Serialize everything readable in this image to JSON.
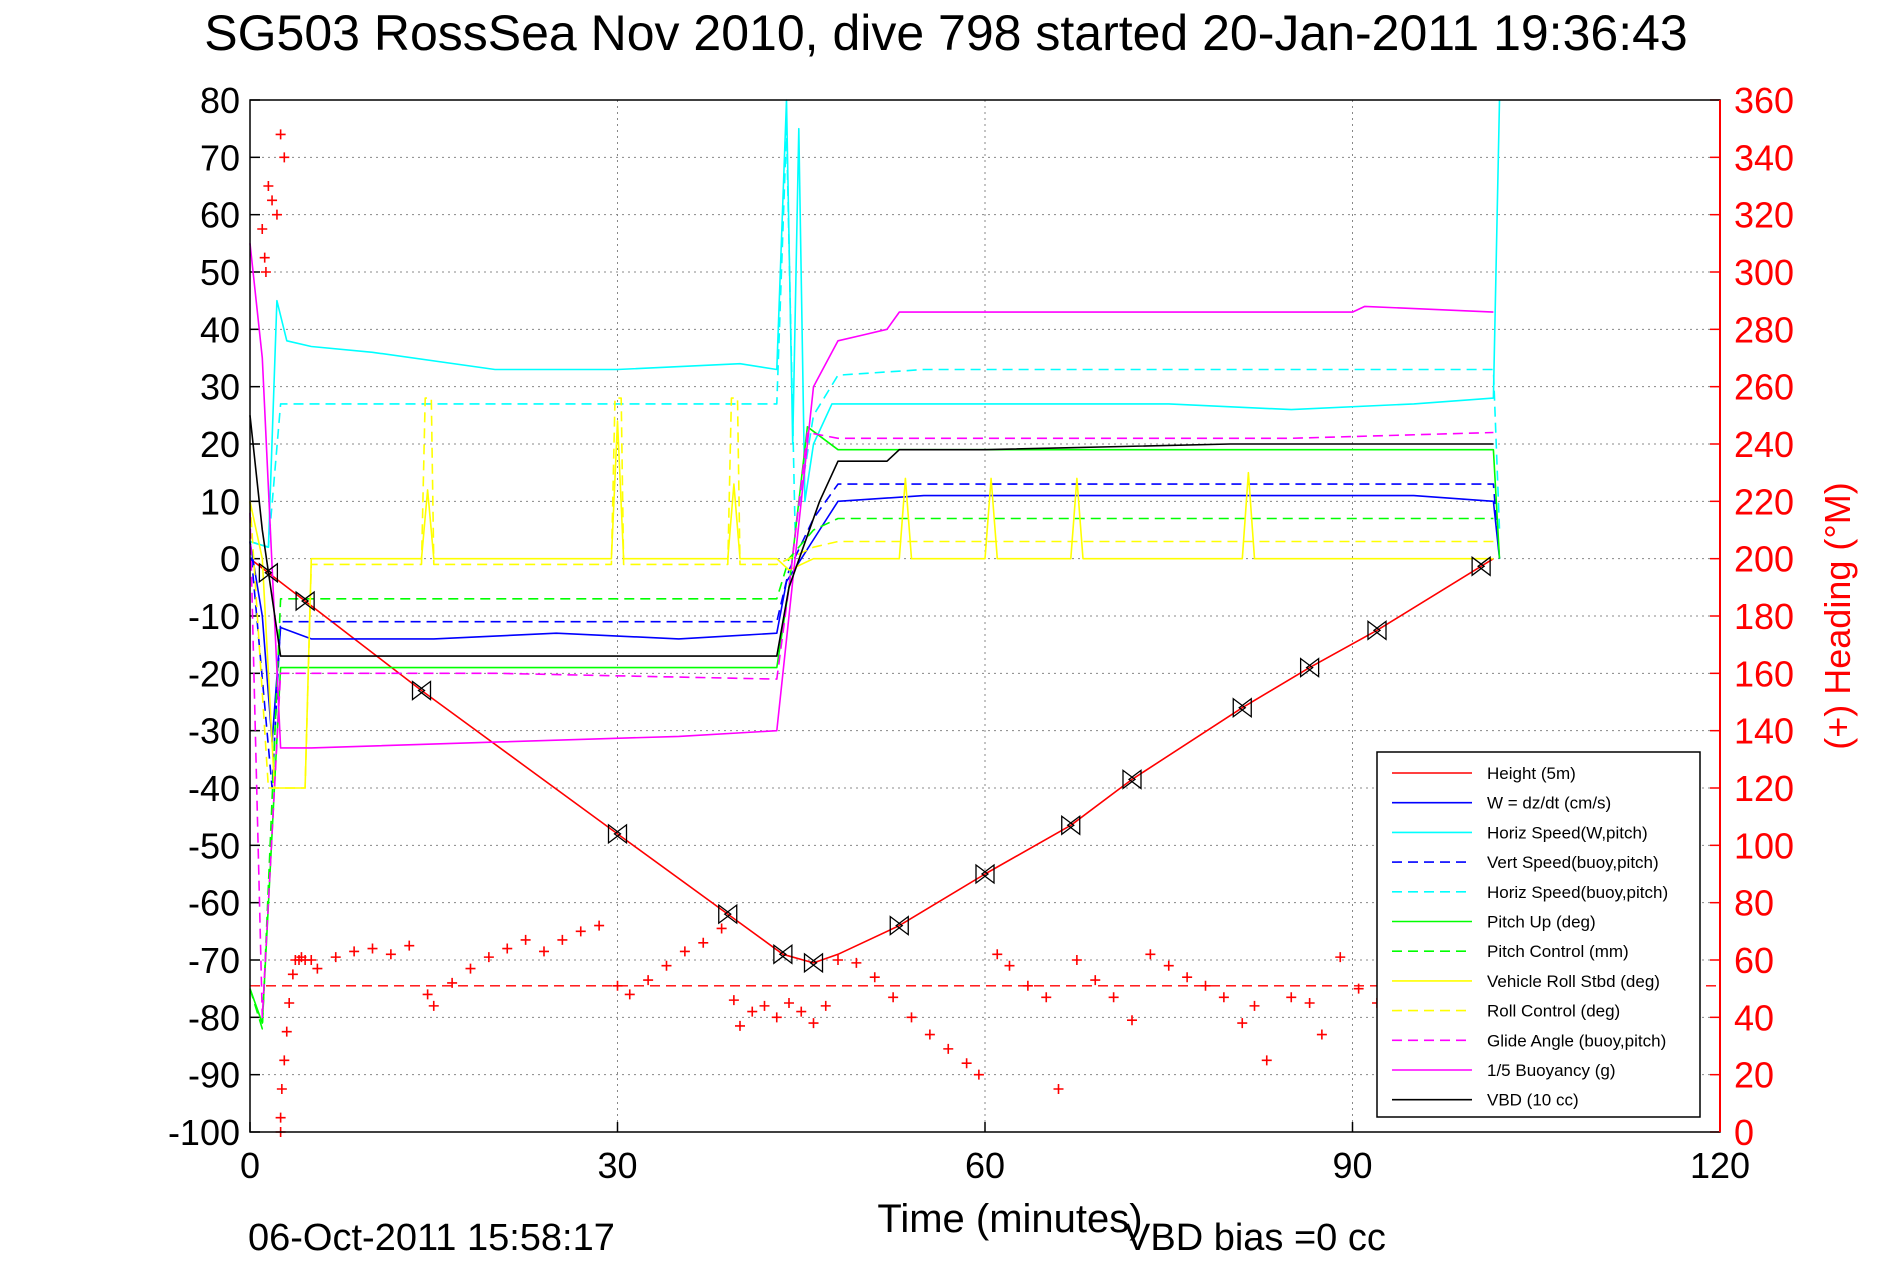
{
  "chart_data": {
    "type": "line",
    "title": "SG503 RossSea Nov 2010, dive 798 started 20-Jan-2011 19:36:43",
    "xlabel": "Time (minutes)",
    "ylabel_right": "(+) Heading (°M)",
    "xlim": [
      0,
      120
    ],
    "ylim": [
      -100,
      80
    ],
    "ylim_right": [
      0,
      360
    ],
    "x_ticks": [
      0,
      30,
      60,
      90,
      120
    ],
    "y_ticks": [
      80,
      70,
      60,
      50,
      40,
      30,
      20,
      10,
      0,
      -10,
      -20,
      -30,
      -40,
      -50,
      -60,
      -70,
      -80,
      -90,
      -100
    ],
    "y_ticks_right": [
      360,
      340,
      320,
      300,
      280,
      260,
      240,
      220,
      200,
      180,
      160,
      140,
      120,
      100,
      80,
      60,
      40,
      20,
      0
    ],
    "grid": true,
    "legend_position": "bottom-right",
    "footer_left": "06-Oct-2011 15:58:17",
    "footer_right": "VBD bias =0 cc",
    "colors": {
      "red": "#ff0000",
      "blue": "#0000ff",
      "cyan": "#00ffff",
      "green": "#00ff00",
      "yellow": "#ffff00",
      "magenta": "#ff00ff",
      "black": "#000000"
    },
    "series": [
      {
        "name": "Height (5m)",
        "color": "#ff0000",
        "dash": false,
        "x": [
          0,
          14,
          30,
          39,
          43.5,
          46,
          48,
          53,
          60,
          67,
          72,
          81,
          86.5,
          92,
          100,
          101.5
        ],
        "y": [
          0,
          -23,
          -48,
          -62,
          -69,
          -70.5,
          -69,
          -64,
          -55,
          -46.5,
          -38.5,
          -26,
          -19,
          -12.5,
          -2,
          0
        ]
      },
      {
        "name": "W = dz/dt (cm/s)",
        "color": "#0000ff",
        "dash": false,
        "x": [
          0,
          1,
          1.8,
          2.5,
          5,
          15,
          25,
          35,
          43,
          43.8,
          45,
          46.5,
          48,
          55,
          65,
          75,
          85,
          95,
          101.5,
          102
        ],
        "y": [
          3,
          -10,
          -32,
          -12,
          -14,
          -14,
          -13,
          -14,
          -13,
          -4,
          0,
          5,
          10,
          11,
          11,
          11,
          11,
          11,
          10,
          0
        ]
      },
      {
        "name": "Horiz Speed(W,pitch)",
        "color": "#00ffff",
        "dash": false,
        "x": [
          0,
          1.5,
          2.2,
          3,
          5,
          10,
          20,
          30,
          40,
          43,
          43.8,
          44.3,
          44.8,
          45.3,
          46,
          47.5,
          55,
          65,
          75,
          85,
          95,
          101.5,
          102
        ],
        "y": [
          3,
          2,
          45,
          38,
          37,
          36,
          33,
          33,
          34,
          33,
          80,
          20,
          75,
          10,
          20,
          27,
          27,
          27,
          27,
          26,
          27,
          28,
          80
        ]
      },
      {
        "name": "Vert Speed(buoy,pitch)",
        "color": "#0000ff",
        "dash": true,
        "x": [
          0,
          1.8,
          2.5,
          5,
          20,
          43,
          44,
          46,
          48,
          55,
          70,
          85,
          101.5,
          102
        ],
        "y": [
          3,
          -40,
          -11,
          -11,
          -11,
          -11,
          -2,
          7,
          13,
          13,
          13,
          13,
          13,
          0
        ]
      },
      {
        "name": "Horiz Speed(buoy,pitch)",
        "color": "#00ffff",
        "dash": true,
        "x": [
          0,
          1.5,
          2.5,
          5,
          20,
          43,
          43.8,
          44.5,
          46,
          48,
          55,
          70,
          85,
          101.5,
          102
        ],
        "y": [
          3,
          2,
          27,
          27,
          27,
          27,
          75,
          5,
          25,
          32,
          33,
          33,
          33,
          33,
          5
        ]
      },
      {
        "name": "Pitch Up (deg)",
        "color": "#00ff00",
        "dash": false,
        "x": [
          0,
          1,
          2.5,
          5,
          20,
          43,
          44,
          45.5,
          48,
          55,
          70,
          85,
          101.5,
          102
        ],
        "y": [
          -75,
          -81,
          -19,
          -19,
          -19,
          -19,
          -5,
          23,
          19,
          19,
          19,
          19,
          19,
          0
        ]
      },
      {
        "name": "Pitch Control (mm)",
        "color": "#00ff00",
        "dash": true,
        "x": [
          0,
          1,
          2.5,
          5,
          20,
          43,
          44,
          46,
          48,
          55,
          70,
          85,
          101.5
        ],
        "y": [
          -75,
          -82,
          -7,
          -7,
          -7,
          -7,
          0,
          5,
          7,
          7,
          7,
          7,
          7
        ]
      },
      {
        "name": "Vehicle Roll Stbd (deg)",
        "color": "#ffff00",
        "dash": false,
        "x": [
          0,
          1,
          2,
          3,
          4.5,
          5,
          14,
          14.5,
          15,
          29.5,
          30,
          30.5,
          39,
          39.5,
          40,
          43,
          44,
          46,
          48,
          53,
          53.5,
          54,
          60,
          60.5,
          61,
          67,
          67.5,
          68,
          81,
          81.5,
          82,
          101.5
        ],
        "y": [
          10,
          0,
          -40,
          -40,
          -40,
          0,
          0,
          12,
          0,
          0,
          24,
          0,
          0,
          13,
          0,
          0,
          -2,
          0,
          0,
          0,
          14,
          0,
          0,
          14,
          0,
          0,
          14,
          0,
          0,
          15,
          0,
          0
        ]
      },
      {
        "name": "Roll Control (deg)",
        "color": "#ffff00",
        "dash": true,
        "x": [
          0,
          1.5,
          2.5,
          4.5,
          5,
          14,
          14.3,
          14.8,
          15,
          29.5,
          29.8,
          30.3,
          30.5,
          39,
          39.3,
          39.8,
          40,
          43,
          46,
          48,
          101.5
        ],
        "y": [
          10,
          -40,
          -40,
          -40,
          -1,
          -1,
          28,
          28,
          -1,
          -1,
          28,
          28,
          -1,
          -1,
          28,
          28,
          -1,
          -1,
          2,
          3,
          3
        ]
      },
      {
        "name": "Glide Angle (buoy,pitch)",
        "color": "#ff00ff",
        "dash": true,
        "x": [
          0,
          1,
          2.5,
          5,
          20,
          43,
          44,
          45.5,
          48,
          55,
          70,
          85,
          101.5
        ],
        "y": [
          8,
          -80,
          -20,
          -20,
          -20,
          -21,
          -5,
          22,
          21,
          21,
          21,
          21,
          22
        ]
      },
      {
        "name": "1/5 Buoyancy (g)",
        "color": "#ff00ff",
        "dash": false,
        "x": [
          0,
          1,
          2.5,
          5,
          20,
          35,
          43,
          44.5,
          46,
          48,
          50,
          52,
          53,
          60,
          80,
          90,
          91,
          101.5
        ],
        "y": [
          55,
          35,
          -33,
          -33,
          -32,
          -31,
          -30,
          0,
          30,
          38,
          39,
          40,
          43,
          43,
          43,
          43,
          44,
          43
        ]
      },
      {
        "name": "VBD (10 cc)",
        "color": "#000000",
        "dash": false,
        "x": [
          0,
          1,
          2.5,
          5,
          20,
          43,
          44,
          46.5,
          48,
          52,
          53,
          60,
          80,
          101.5
        ],
        "y": [
          25,
          5,
          -17,
          -17,
          -17,
          -17,
          -5,
          10,
          17,
          17,
          19,
          19,
          20,
          20
        ]
      }
    ],
    "heading_points": {
      "name": "(+) Heading",
      "color": "#ff0000",
      "x": [
        2.5,
        2.5,
        2.6,
        2.8,
        3.0,
        3.2,
        3.5,
        3.7,
        4.0,
        4.2,
        4.5,
        5.0,
        1.0,
        1.2,
        1.3,
        1.5,
        1.8,
        2.2,
        2.5,
        2.8,
        5.5,
        7,
        8.5,
        10,
        11.5,
        13,
        14.5,
        15,
        16.5,
        18,
        19.5,
        21,
        22.5,
        24,
        25.5,
        27,
        28.5,
        30,
        31,
        32.5,
        34,
        35.5,
        37,
        38.5,
        39.5,
        40,
        41,
        42,
        43,
        44,
        45,
        46,
        47,
        48,
        49.5,
        51,
        52.5,
        54,
        55.5,
        57,
        58.5,
        59.5,
        61,
        62,
        63.5,
        65,
        66,
        67.5,
        69,
        70.5,
        72,
        73.5,
        75,
        76.5,
        78,
        79.5,
        81,
        82,
        83,
        85,
        86.5,
        87.5,
        89,
        90.5,
        92
      ],
      "y": [
        0,
        5,
        15,
        25,
        35,
        45,
        55,
        60,
        60,
        61,
        60,
        60,
        315,
        305,
        300,
        330,
        325,
        320,
        348,
        340,
        57,
        61,
        63,
        64,
        62,
        65,
        48,
        44,
        52,
        57,
        61,
        64,
        67,
        63,
        67,
        70,
        72,
        51,
        48,
        53,
        58,
        63,
        66,
        71,
        46,
        37,
        42,
        44,
        40,
        45,
        42,
        38,
        44,
        60,
        59,
        54,
        47,
        40,
        34,
        29,
        24,
        20,
        62,
        58,
        51,
        47,
        15,
        60,
        53,
        47,
        39,
        62,
        58,
        54,
        51,
        47,
        38,
        44,
        25,
        47,
        45,
        34,
        61,
        50,
        45
      ]
    },
    "heading_reference": 51,
    "triangle_markers_x": [
      1.5,
      4.5,
      14,
      30,
      39,
      43.5,
      46,
      53,
      60,
      67,
      72,
      81,
      86.5,
      92,
      100.5
    ]
  }
}
